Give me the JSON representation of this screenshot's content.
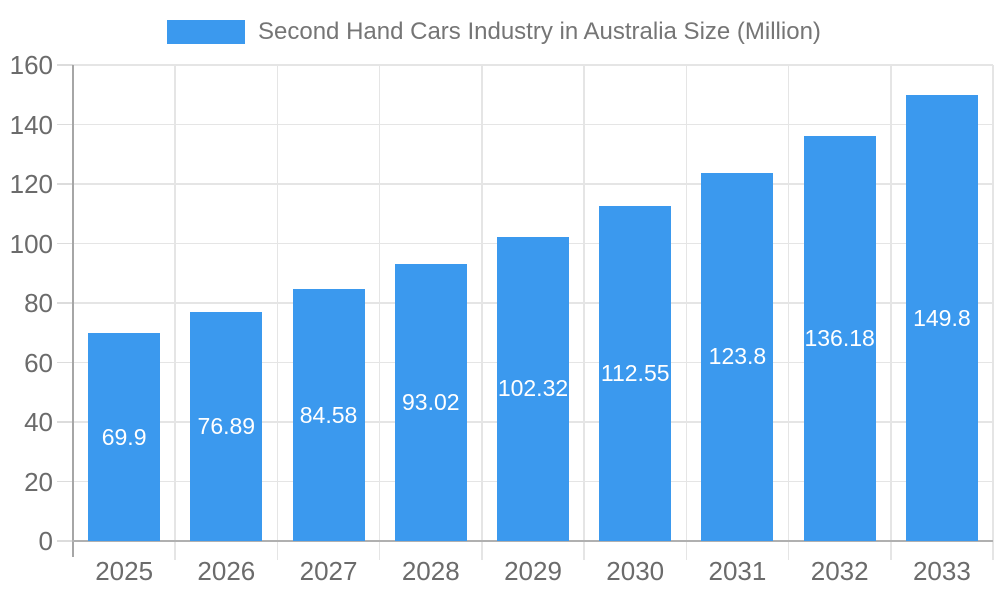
{
  "chart_data": {
    "type": "bar",
    "title": "Second Hand Cars Industry in Australia Size (Million)",
    "categories": [
      "2025",
      "2026",
      "2027",
      "2028",
      "2029",
      "2030",
      "2031",
      "2032",
      "2033"
    ],
    "values": [
      69.9,
      76.89,
      84.58,
      93.02,
      102.32,
      112.55,
      123.8,
      136.18,
      149.8
    ],
    "value_labels": [
      "69.9",
      "76.89",
      "84.58",
      "93.02",
      "102.32",
      "112.55",
      "123.8",
      "136.18",
      "149.8"
    ],
    "xlabel": "",
    "ylabel": "",
    "ylim": [
      0,
      160
    ],
    "y_ticks": [
      0,
      20,
      40,
      60,
      80,
      100,
      120,
      140,
      160
    ],
    "y_tick_labels": [
      "0",
      "20",
      "40",
      "60",
      "80",
      "100",
      "120",
      "140",
      "160"
    ],
    "grid": "horizontal and vertical category boundaries",
    "legend_position": "top",
    "colors": {
      "bar": "#3B99EE",
      "bar_label": "#FFFFFF",
      "title_text": "#757575",
      "axis_label_text": "#6B6B6B",
      "gridline": "#E5E5E5",
      "tick": "#DCDCDC",
      "y_axis_line": "#A6A6A6",
      "x_axis_line": "#B0B0B0",
      "background": "#FFFFFF"
    }
  }
}
